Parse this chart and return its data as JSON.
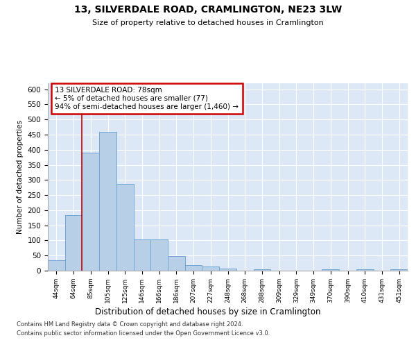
{
  "title": "13, SILVERDALE ROAD, CRAMLINGTON, NE23 3LW",
  "subtitle": "Size of property relative to detached houses in Cramlington",
  "xlabel": "Distribution of detached houses by size in Cramlington",
  "ylabel": "Number of detached properties",
  "categories": [
    "44sqm",
    "64sqm",
    "85sqm",
    "105sqm",
    "125sqm",
    "146sqm",
    "166sqm",
    "186sqm",
    "207sqm",
    "227sqm",
    "248sqm",
    "268sqm",
    "288sqm",
    "309sqm",
    "329sqm",
    "349sqm",
    "370sqm",
    "390sqm",
    "410sqm",
    "431sqm",
    "451sqm"
  ],
  "values": [
    35,
    183,
    390,
    460,
    288,
    103,
    103,
    48,
    18,
    13,
    8,
    0,
    5,
    0,
    0,
    0,
    5,
    0,
    5,
    0,
    5
  ],
  "bar_color": "#b8cfe8",
  "bar_edge_color": "#6fa8d4",
  "background_color": "#dce8f5",
  "grid_color": "#ffffff",
  "property_line_x": 1.5,
  "property_line_color": "#cc0000",
  "annotation_text": "13 SILVERDALE ROAD: 78sqm\n← 5% of detached houses are smaller (77)\n94% of semi-detached houses are larger (1,460) →",
  "annotation_box_color": "#cc0000",
  "footer1": "Contains HM Land Registry data © Crown copyright and database right 2024.",
  "footer2": "Contains public sector information licensed under the Open Government Licence v3.0.",
  "ylim": [
    0,
    620
  ],
  "yticks": [
    0,
    50,
    100,
    150,
    200,
    250,
    300,
    350,
    400,
    450,
    500,
    550,
    600
  ]
}
